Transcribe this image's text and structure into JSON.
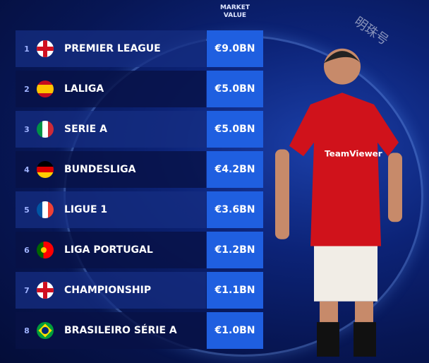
{
  "header": {
    "value_label_line1": "MARKET",
    "value_label_line2": "VALUE"
  },
  "watermark": "明珠号",
  "chart_data": {
    "type": "table",
    "columns": [
      "",
      "",
      "MARKET VALUE"
    ],
    "rows": [
      {
        "rank": "1",
        "flag": "england",
        "league": "PREMIER LEAGUE",
        "value": "€9.0BN"
      },
      {
        "rank": "2",
        "flag": "spain",
        "league": "LALIGA",
        "value": "€5.0BN"
      },
      {
        "rank": "3",
        "flag": "italy",
        "league": "SERIE A",
        "value": "€5.0BN"
      },
      {
        "rank": "4",
        "flag": "germany",
        "league": "BUNDESLIGA",
        "value": "€4.2BN"
      },
      {
        "rank": "5",
        "flag": "france",
        "league": "LIGUE 1",
        "value": "€3.6BN"
      },
      {
        "rank": "6",
        "flag": "portugal",
        "league": "LIGA PORTUGAL",
        "value": "€1.2BN"
      },
      {
        "rank": "7",
        "flag": "england",
        "league": "CHAMPIONSHIP",
        "value": "€1.1BN"
      },
      {
        "rank": "8",
        "flag": "brazil",
        "league": "BRASILEIRO SÉRIE A",
        "value": "€1.0BN"
      }
    ]
  },
  "player": {
    "shirt_sponsor": "TeamViewer"
  },
  "colors": {
    "value_box": "#1f5fe0",
    "background": "#071654",
    "shirt": "#d0121b"
  }
}
